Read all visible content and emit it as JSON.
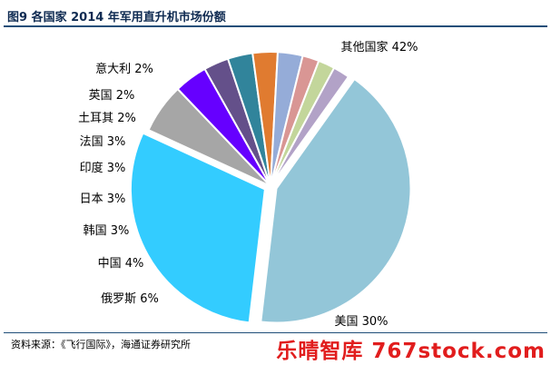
{
  "header": {
    "title": "图9  各国家 2014 年军用直升机市场份额"
  },
  "chart_data": {
    "type": "pie",
    "title": "图9  各国家 2014 年军用直升机市场份额",
    "start_angle_deg": 35.5,
    "slices": [
      {
        "name": "其他国家",
        "value": 42,
        "label": "其他国家 42%",
        "color": "#93c6d8",
        "explode": true
      },
      {
        "name": "美国",
        "value": 30,
        "label": "美国 30%",
        "color": "#33ccff",
        "explode": true
      },
      {
        "name": "俄罗斯",
        "value": 6,
        "label": "俄罗斯 6%",
        "color": "#a6a6a6"
      },
      {
        "name": "中国",
        "value": 4,
        "label": "中国 4%",
        "color": "#6600ff"
      },
      {
        "name": "韩国",
        "value": 3,
        "label": "韩国 3%",
        "color": "#64508a"
      },
      {
        "name": "日本",
        "value": 3,
        "label": "日本 3%",
        "color": "#31849b"
      },
      {
        "name": "印度",
        "value": 3,
        "label": "印度 3%",
        "color": "#e07b30"
      },
      {
        "name": "法国",
        "value": 3,
        "label": "法国 3%",
        "color": "#95acd8"
      },
      {
        "name": "土耳其",
        "value": 2,
        "label": "土耳其 2%",
        "color": "#d99694"
      },
      {
        "name": "英国",
        "value": 2,
        "label": "英国 2%",
        "color": "#c3d69b"
      },
      {
        "name": "意大利",
        "value": 2,
        "label": "意大利 2%",
        "color": "#b2a2c7"
      }
    ]
  },
  "footer": {
    "source": "资料来源：《飞行国际》，海通证券研究所",
    "watermark": "乐晴智库 767stock.com"
  },
  "colors": {
    "title": "#0f2b52",
    "rule": "#1f4e79",
    "watermark": "#e11d1d"
  }
}
